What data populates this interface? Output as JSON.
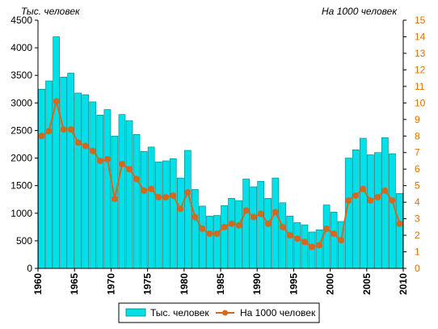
{
  "chart_data": {
    "type": "bar+line",
    "left_axis_title": "Тыс. человек",
    "right_axis_title": "На 1000 человек",
    "legend": {
      "placement": "bottom",
      "items": [
        "Тыс. человек",
        "На 1000 человек"
      ]
    },
    "colors": {
      "bars": "#00e0e8",
      "bar_outline": "#008080",
      "line": "#d2691e",
      "right_axis_labels": "#e07000"
    },
    "grid": false,
    "x_tick_labels": [
      "1960",
      "1965",
      "1970",
      "1975",
      "1980",
      "1985",
      "1990",
      "1995",
      "2000",
      "2005",
      "2010"
    ],
    "y_left": {
      "range": [
        0,
        4500
      ],
      "ticks": [
        "0",
        "500",
        "1000",
        "1500",
        "2000",
        "2500",
        "3000",
        "3500",
        "4000",
        "4500"
      ]
    },
    "y_right": {
      "range": [
        0,
        15
      ],
      "ticks": [
        "0",
        "1",
        "2",
        "3",
        "4",
        "5",
        "6",
        "7",
        "8",
        "9",
        "10",
        "11",
        "12",
        "13",
        "14",
        "15"
      ]
    },
    "x": [
      1960,
      1961,
      1962,
      1963,
      1964,
      1965,
      1966,
      1967,
      1968,
      1969,
      1970,
      1971,
      1972,
      1973,
      1974,
      1975,
      1976,
      1977,
      1978,
      1979,
      1980,
      1981,
      1982,
      1983,
      1984,
      1985,
      1986,
      1987,
      1988,
      1989,
      1990,
      1991,
      1992,
      1993,
      1994,
      1995,
      1996,
      1997,
      1998,
      1999,
      2000,
      2001,
      2002,
      2003,
      2004,
      2005,
      2006,
      2007,
      2008,
      2009
    ],
    "series": [
      {
        "name": "Тыс. человек",
        "kind": "bar",
        "axis": "left",
        "values": [
          3250,
          3400,
          4200,
          3470,
          3540,
          3180,
          3150,
          3020,
          2780,
          2880,
          2400,
          2790,
          2680,
          2430,
          2120,
          2200,
          1930,
          1950,
          1990,
          1640,
          2140,
          1430,
          1130,
          950,
          960,
          1140,
          1270,
          1230,
          1620,
          1480,
          1580,
          1270,
          1640,
          1190,
          950,
          830,
          790,
          660,
          700,
          1150,
          1020,
          850,
          2000,
          2150,
          2360,
          2060,
          2100,
          2370,
          2080,
          1360
        ]
      },
      {
        "name": "На 1000 человек",
        "kind": "line",
        "axis": "right",
        "values": [
          8.0,
          8.3,
          10.1,
          8.4,
          8.4,
          7.6,
          7.4,
          7.1,
          6.5,
          6.6,
          4.2,
          6.3,
          6.0,
          5.4,
          4.7,
          4.8,
          4.3,
          4.3,
          4.4,
          3.6,
          4.6,
          3.1,
          2.4,
          2.1,
          2.1,
          2.5,
          2.7,
          2.6,
          3.5,
          3.1,
          3.3,
          2.7,
          3.4,
          2.5,
          2.0,
          1.8,
          1.6,
          1.3,
          1.4,
          2.4,
          2.1,
          1.7,
          4.1,
          4.4,
          4.8,
          4.1,
          4.3,
          4.7,
          4.1,
          2.7
        ]
      }
    ]
  }
}
